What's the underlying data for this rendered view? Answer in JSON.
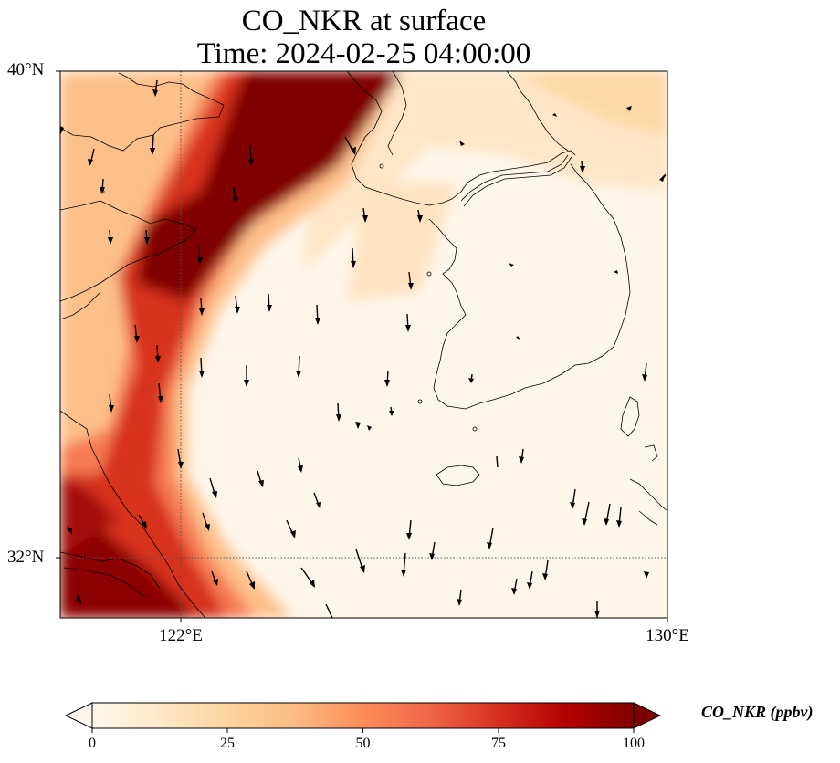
{
  "title_line1": "CO_NKR at surface",
  "title_line2": "Time: 2024-02-25 04:00:00",
  "lat_labels": [
    "40°N",
    "32°N"
  ],
  "lon_labels": [
    "122°E",
    "130°E"
  ],
  "colorbar": {
    "label": "CO_NKR (ppbv)",
    "ticks": [
      "0",
      "25",
      "50",
      "75",
      "100"
    ],
    "range": [
      0,
      100
    ],
    "colormap": [
      "#fff7ec",
      "#fee8c8",
      "#fdd49e",
      "#fdbb84",
      "#fc8d59",
      "#ef6548",
      "#d7301f",
      "#b30000",
      "#7f0000"
    ]
  },
  "map": {
    "extent_lon": [
      120,
      130
    ],
    "extent_lat": [
      31,
      40
    ],
    "gridlines_lon": [
      122
    ],
    "gridlines_lat": [
      32
    ],
    "field": "CO_NKR concentration (ppbv)",
    "vectors": "wind arrows"
  }
}
